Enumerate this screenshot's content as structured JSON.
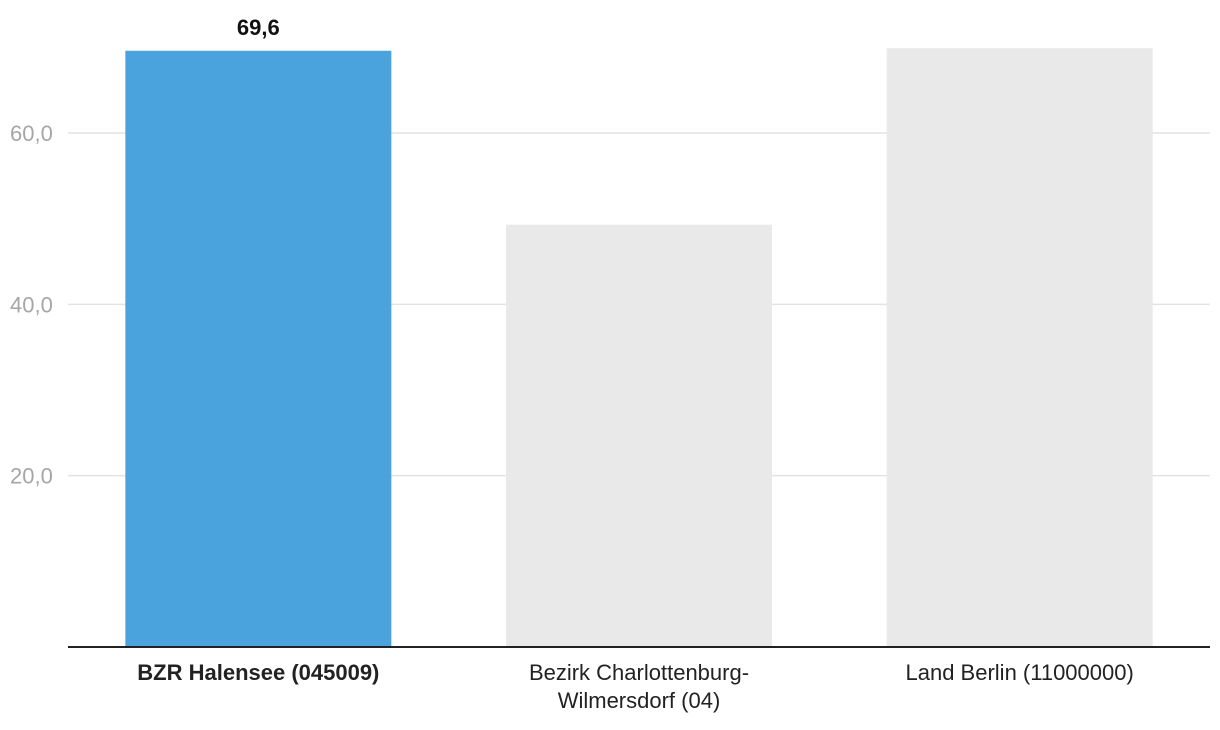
{
  "chart_data": {
    "type": "bar",
    "categories": [
      [
        "BZR Halensee (045009)"
      ],
      [
        "Bezirk Charlottenburg-",
        "Wilmersdorf (04)"
      ],
      [
        "Land Berlin (11000000)"
      ]
    ],
    "values": [
      69.6,
      49.3,
      69.9
    ],
    "highlight_index": 0,
    "value_labels": [
      "69,6",
      "",
      ""
    ],
    "yticks": [
      {
        "value": 20,
        "label": "20,0"
      },
      {
        "value": 40,
        "label": "40,0"
      },
      {
        "value": 60,
        "label": "60,0"
      }
    ],
    "ylim": [
      0,
      70
    ],
    "grid": true,
    "title": "",
    "xlabel": "",
    "ylabel": "",
    "colors": {
      "highlight": "#4ba3de",
      "other": "#e9e9e9"
    }
  }
}
